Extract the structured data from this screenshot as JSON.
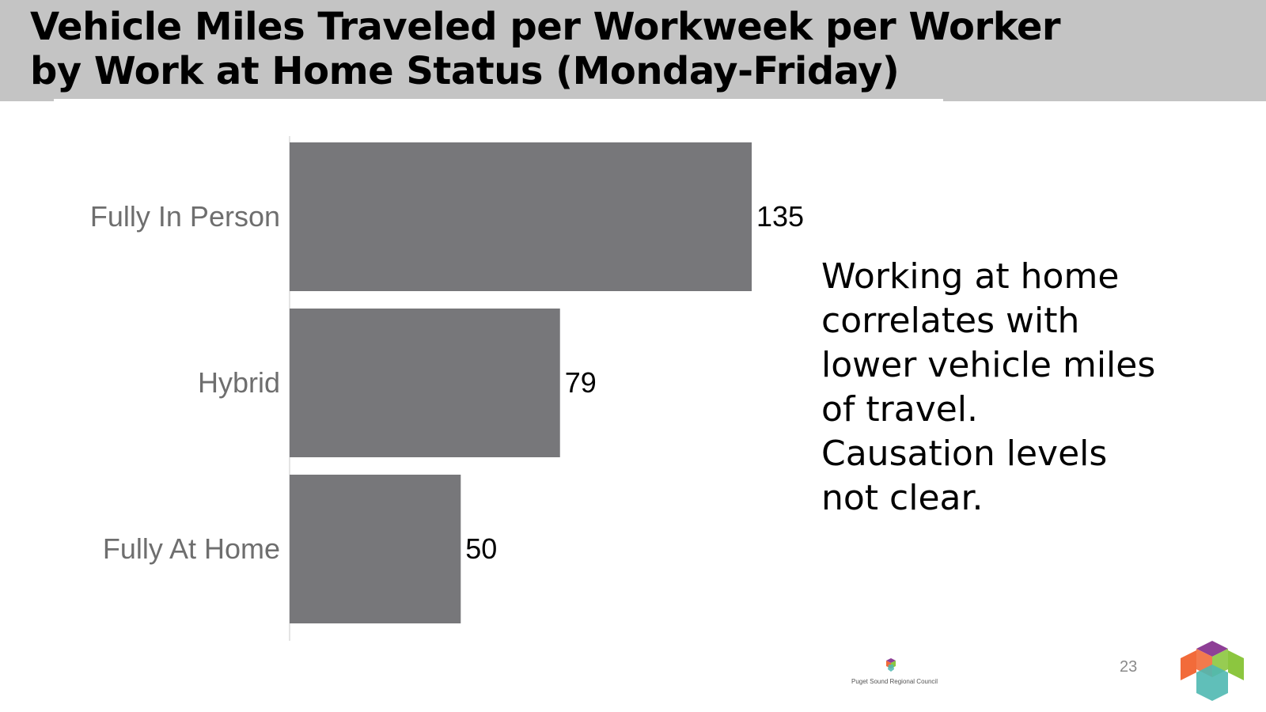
{
  "slide": {
    "title_line1": "Vehicle Miles Traveled per Workweek per Worker",
    "title_line2": "by Work at Home Status (Monday-Friday)",
    "callout_lines": [
      "Working at home",
      "correlates with",
      "lower vehicle miles",
      "of travel.",
      "Causation levels",
      "not clear."
    ],
    "page_number": "23",
    "logo_text": "Puget Sound Regional Council"
  },
  "colors": {
    "title_bar": "#c4c4c4",
    "bar": "#77777a",
    "category_label": "#6e6e6e",
    "value_label": "#000000",
    "axis_line": "#e4e4e4",
    "logo_purple": "#8e3f96",
    "logo_green": "#8cc63f",
    "logo_orange": "#f26b3a",
    "logo_teal": "#4fb8b1"
  },
  "chart_data": {
    "type": "bar",
    "orientation": "horizontal",
    "categories": [
      "Fully In Person",
      "Hybrid",
      "Fully At Home"
    ],
    "values": [
      135,
      79,
      50
    ],
    "data_labels": [
      "135",
      "79",
      "50"
    ],
    "title": "",
    "xlabel": "",
    "ylabel": "",
    "xlim": [
      0,
      135
    ],
    "grid": false,
    "legend": "none"
  }
}
